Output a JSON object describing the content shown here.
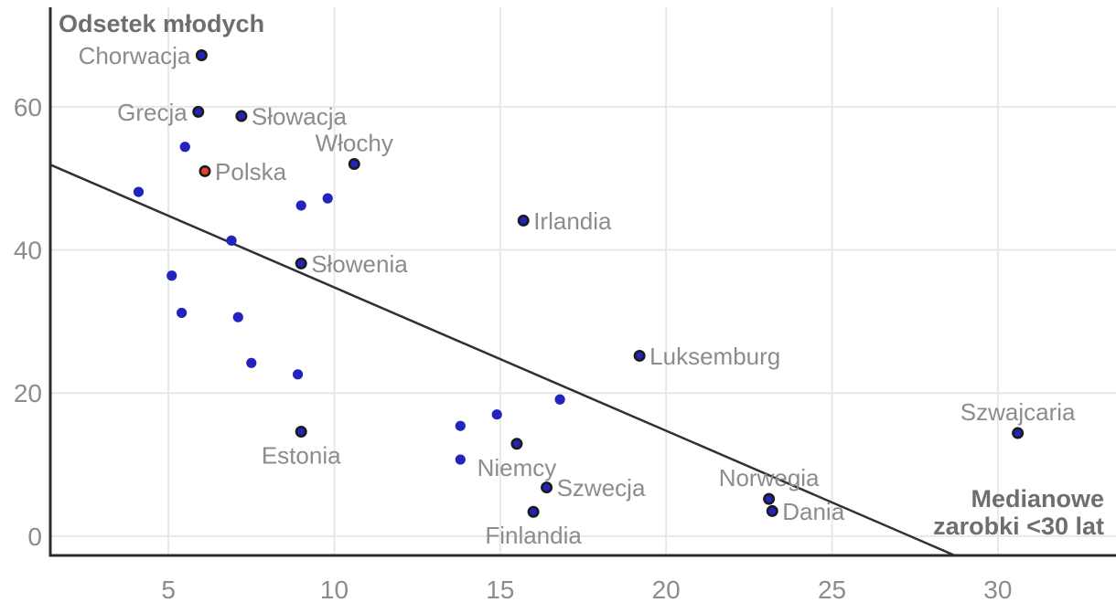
{
  "chart_title": "Odsetek młodych",
  "x_axis_label": "Medianowe\nzarobki <30 lat",
  "chart_data": {
    "type": "scatter",
    "title": "Odsetek młodych",
    "xlabel": "Medianowe zarobki <30 lat",
    "ylabel": "Odsetek młodych",
    "x_ticks": [
      5,
      10,
      15,
      20,
      25,
      30
    ],
    "y_ticks": [
      0,
      20,
      40,
      60
    ],
    "xlim": [
      1.44,
      33.56
    ],
    "ylim": [
      -2.7,
      73.9
    ],
    "grid": true,
    "legend": "none",
    "points": [
      {
        "label": "Chorwacja",
        "x": 6.0,
        "y": 67.2,
        "label_pos": "left",
        "highlight": false
      },
      {
        "label": "Grecja",
        "x": 5.9,
        "y": 59.3,
        "label_pos": "left",
        "highlight": false
      },
      {
        "label": "Słowacja",
        "x": 7.2,
        "y": 58.7,
        "label_pos": "right",
        "highlight": false
      },
      {
        "label": "Włochy",
        "x": 10.6,
        "y": 52.0,
        "label_pos": "above",
        "highlight": false
      },
      {
        "label": "Polska",
        "x": 6.1,
        "y": 51.0,
        "label_pos": "right",
        "highlight": true
      },
      {
        "label": "Irlandia",
        "x": 15.7,
        "y": 44.1,
        "label_pos": "right",
        "highlight": false
      },
      {
        "label": "Słowenia",
        "x": 9.0,
        "y": 38.1,
        "label_pos": "right",
        "highlight": false
      },
      {
        "label": "Luksemburg",
        "x": 19.2,
        "y": 25.2,
        "label_pos": "right",
        "highlight": false
      },
      {
        "label": "Estonia",
        "x": 9.0,
        "y": 14.6,
        "label_pos": "below",
        "highlight": false
      },
      {
        "label": "Niemcy",
        "x": 15.5,
        "y": 12.9,
        "label_pos": "below",
        "highlight": false
      },
      {
        "label": "Szwecja",
        "x": 16.4,
        "y": 6.8,
        "label_pos": "right",
        "highlight": false
      },
      {
        "label": "Finlandia",
        "x": 16.0,
        "y": 3.4,
        "label_pos": "below",
        "highlight": false
      },
      {
        "label": "Norwegia",
        "x": 23.1,
        "y": 5.2,
        "label_pos": "above",
        "highlight": false
      },
      {
        "label": "Dania",
        "x": 23.2,
        "y": 3.5,
        "label_pos": "right",
        "highlight": false
      },
      {
        "label": "Szwajcaria",
        "x": 30.6,
        "y": 14.4,
        "label_pos": "above",
        "highlight": false
      },
      {
        "label": "",
        "x": 4.1,
        "y": 48.1,
        "label_pos": "none",
        "highlight": false
      },
      {
        "label": "",
        "x": 5.5,
        "y": 54.4,
        "label_pos": "none",
        "highlight": false
      },
      {
        "label": "",
        "x": 6.9,
        "y": 41.3,
        "label_pos": "none",
        "highlight": false
      },
      {
        "label": "",
        "x": 5.1,
        "y": 36.4,
        "label_pos": "none",
        "highlight": false
      },
      {
        "label": "",
        "x": 5.4,
        "y": 31.2,
        "label_pos": "none",
        "highlight": false
      },
      {
        "label": "",
        "x": 7.1,
        "y": 30.6,
        "label_pos": "none",
        "highlight": false
      },
      {
        "label": "",
        "x": 7.5,
        "y": 24.2,
        "label_pos": "none",
        "highlight": false
      },
      {
        "label": "",
        "x": 8.9,
        "y": 22.6,
        "label_pos": "none",
        "highlight": false
      },
      {
        "label": "",
        "x": 9.8,
        "y": 47.2,
        "label_pos": "none",
        "highlight": false
      },
      {
        "label": "",
        "x": 9.0,
        "y": 46.2,
        "label_pos": "none",
        "highlight": false
      },
      {
        "label": "",
        "x": 13.8,
        "y": 15.4,
        "label_pos": "none",
        "highlight": false
      },
      {
        "label": "",
        "x": 13.8,
        "y": 10.7,
        "label_pos": "none",
        "highlight": false
      },
      {
        "label": "",
        "x": 14.9,
        "y": 17.0,
        "label_pos": "none",
        "highlight": false
      },
      {
        "label": "",
        "x": 16.8,
        "y": 19.1,
        "label_pos": "none",
        "highlight": false
      }
    ],
    "trend_line": {
      "x1": 1.44,
      "y1": 51.9,
      "x2": 28.7,
      "y2": -2.7
    },
    "colors": {
      "point_fill": "#2323bd",
      "point_ring": "#1b1b1b",
      "highlight_fill": "#e8431c",
      "trend_line": "#303030",
      "axis_line": "#2b2b2b",
      "gridline": "#e8e8e8",
      "country_label": "#8c8c8c",
      "tick_label": "#8c8c8c",
      "title": "#6e6e6e"
    }
  }
}
